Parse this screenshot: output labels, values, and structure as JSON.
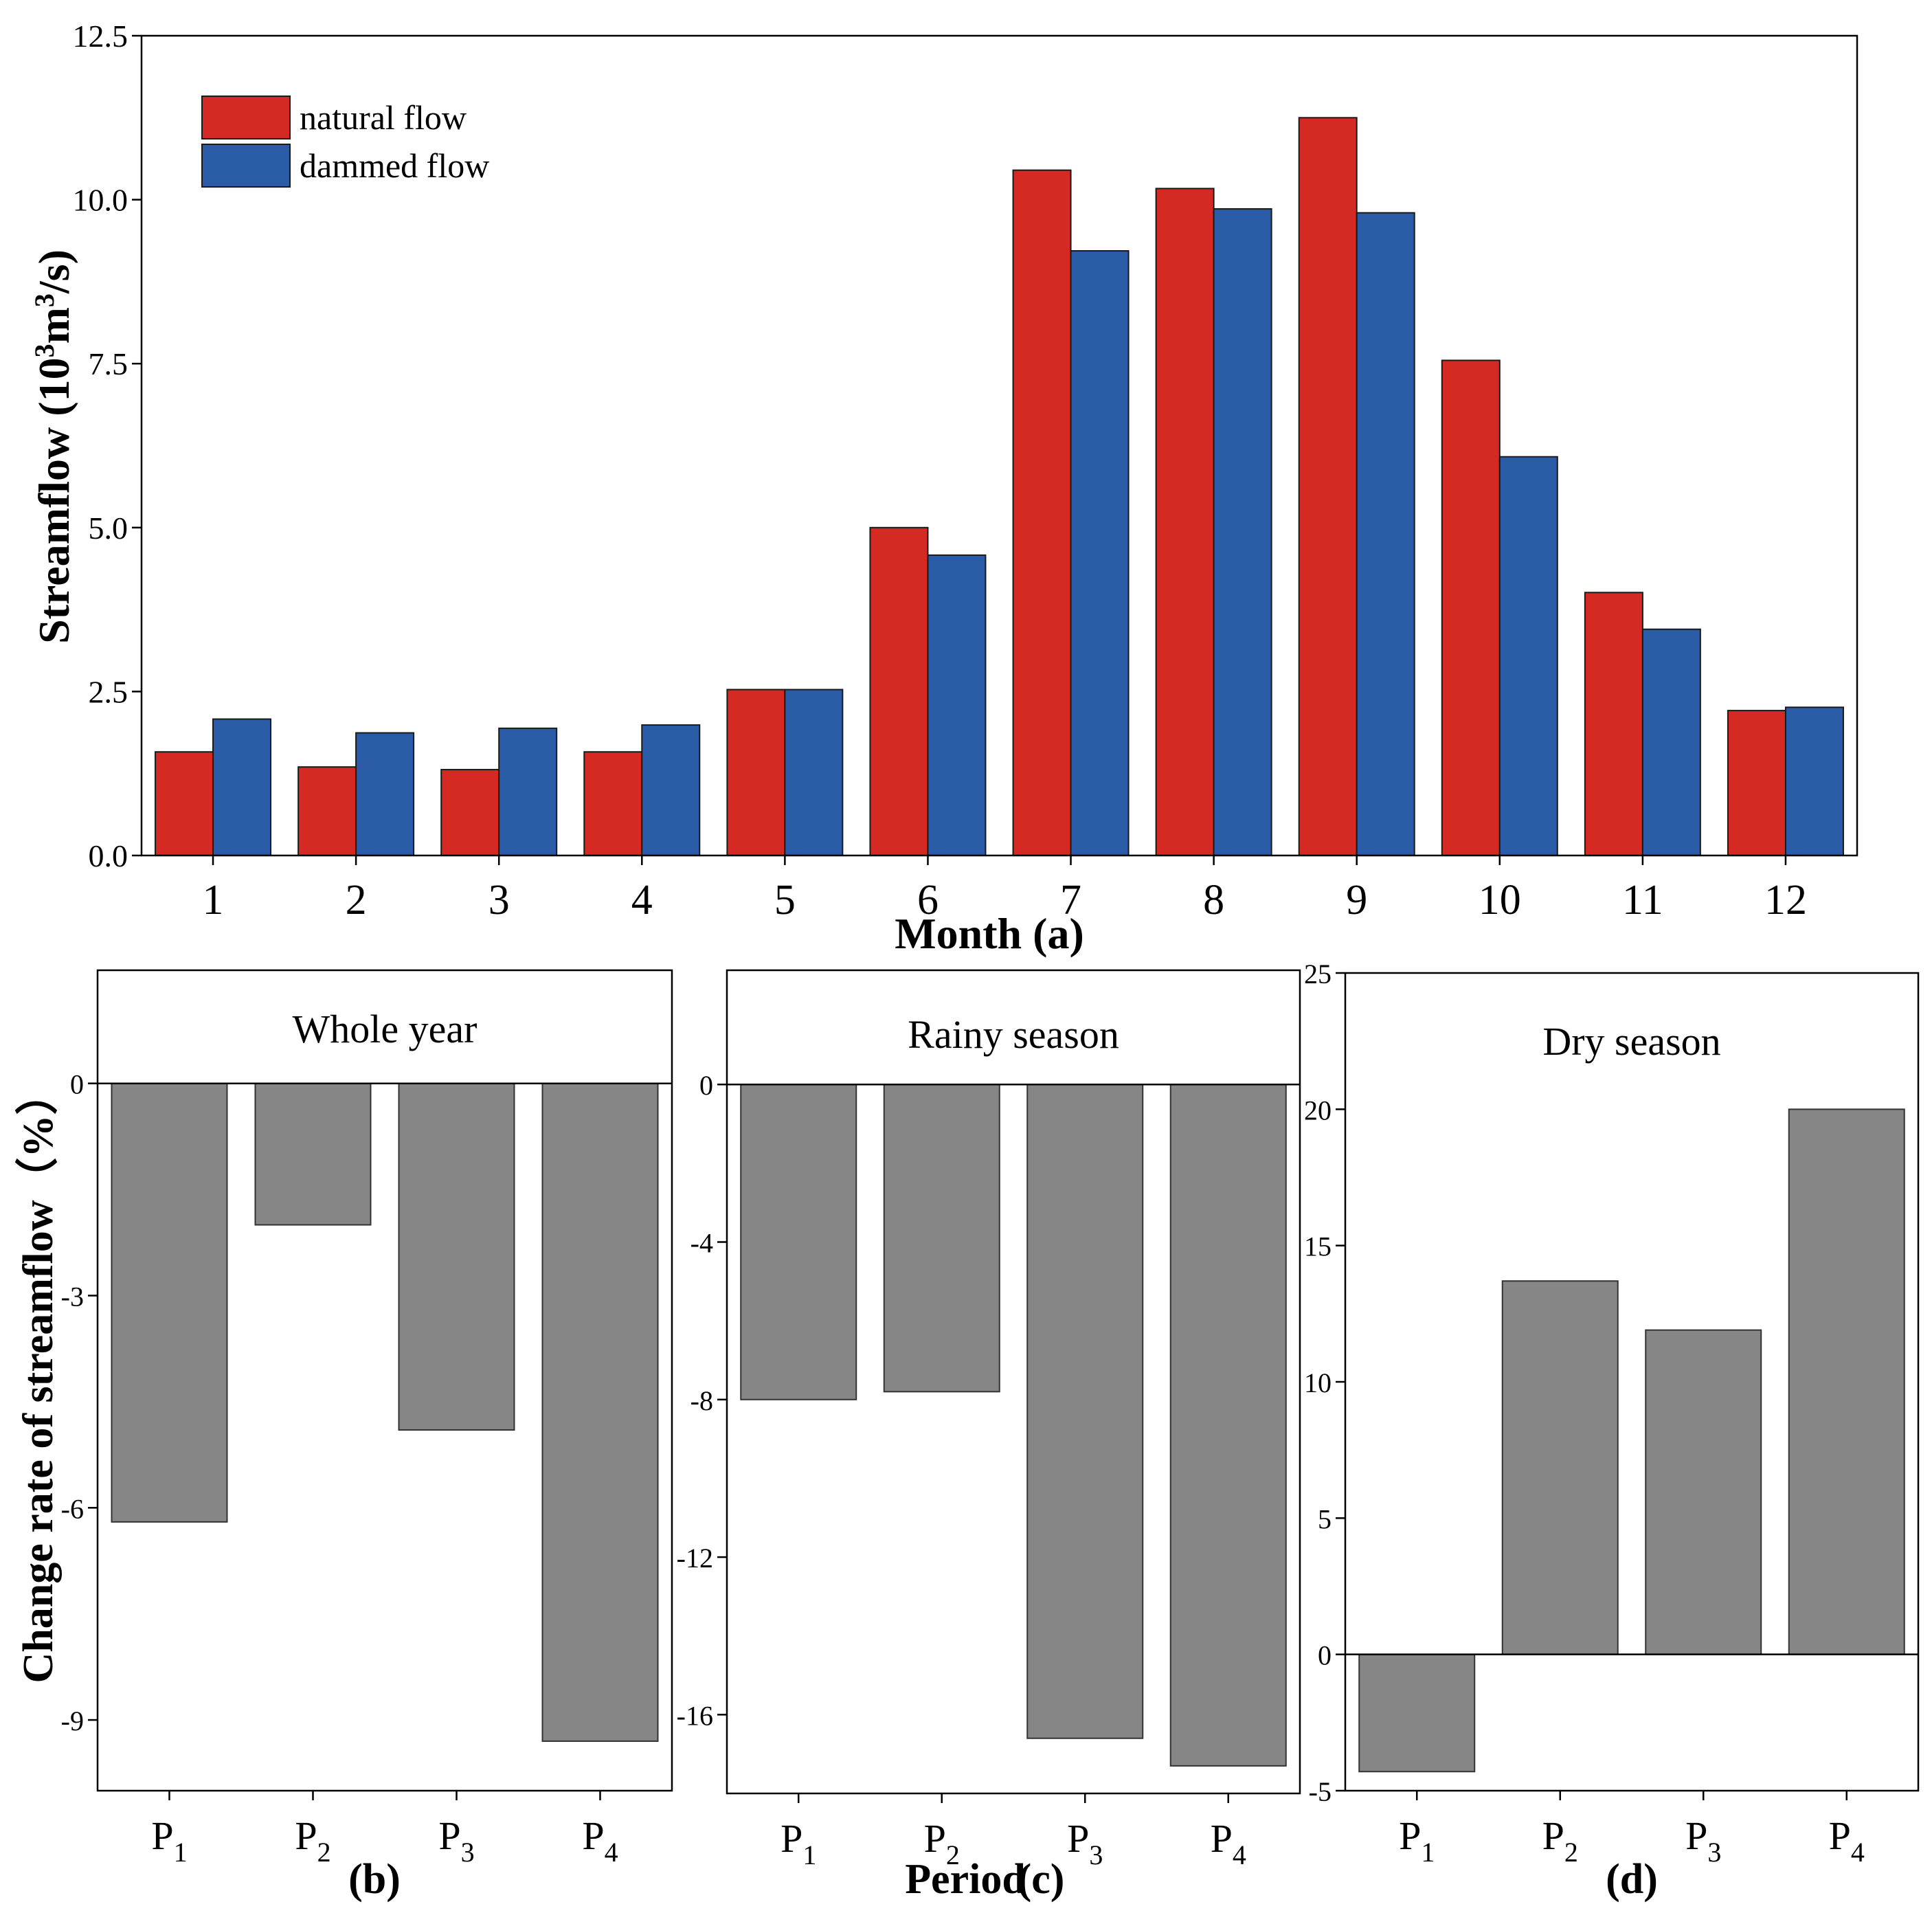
{
  "chart_data": [
    {
      "id": "a",
      "type": "bar",
      "panel_label": "(a)",
      "xlabel": "Month",
      "ylabel_parts": [
        "Streamflow (10",
        "3",
        "m",
        "3",
        "/s)"
      ],
      "categories": [
        "1",
        "2",
        "3",
        "4",
        "5",
        "6",
        "7",
        "8",
        "9",
        "10",
        "11",
        "12"
      ],
      "ylim": [
        0,
        12.5
      ],
      "yticks": [
        "0.0",
        "2.5",
        "5.0",
        "7.5",
        "10.0",
        "12.5"
      ],
      "legend_position": "top-left",
      "series": [
        {
          "name": "natural flow",
          "color": "#d42a23",
          "values": [
            1.58,
            1.35,
            1.31,
            1.58,
            2.53,
            5.0,
            10.45,
            10.17,
            11.25,
            7.55,
            4.01,
            2.21
          ]
        },
        {
          "name": "dammed flow",
          "color": "#2a5ba6",
          "values": [
            2.08,
            1.87,
            1.94,
            1.99,
            2.53,
            4.58,
            9.22,
            9.86,
            9.8,
            6.08,
            3.45,
            2.26
          ]
        }
      ]
    },
    {
      "id": "b",
      "type": "bar",
      "panel_title": "Whole year",
      "panel_label": "(b)",
      "ylabel": "Change rate of streamflow（%）",
      "categories": [
        "P1",
        "P2",
        "P3",
        "P4"
      ],
      "category_subscripts": [
        "1",
        "2",
        "3",
        "4"
      ],
      "ylim": [
        -10.0,
        1.6
      ],
      "yticks": [
        "0",
        "-3",
        "-6",
        "-9"
      ],
      "color": "#868686",
      "values": [
        -6.2,
        -2.0,
        -4.9,
        -9.3
      ]
    },
    {
      "id": "c",
      "type": "bar",
      "panel_title": "Rainy season",
      "panel_label": "(c)",
      "xlabel": "Period",
      "categories": [
        "P1",
        "P2",
        "P3",
        "P4"
      ],
      "category_subscripts": [
        "1",
        "2",
        "3",
        "4"
      ],
      "ylim": [
        -18.0,
        2.9
      ],
      "yticks": [
        "0",
        "-4",
        "-8",
        "-12",
        "-16"
      ],
      "color": "#868686",
      "values": [
        -8.0,
        -7.8,
        -16.6,
        -17.3
      ]
    },
    {
      "id": "d",
      "type": "bar",
      "panel_title": "Dry season",
      "panel_label": "(d)",
      "categories": [
        "P1",
        "P2",
        "P3",
        "P4"
      ],
      "category_subscripts": [
        "1",
        "2",
        "3",
        "4"
      ],
      "ylim": [
        -5.0,
        25.0
      ],
      "yticks": [
        "25",
        "20",
        "15",
        "10",
        "5",
        "0",
        "-5"
      ],
      "color": "#868686",
      "values": [
        -4.3,
        13.7,
        11.9,
        20.0
      ]
    }
  ]
}
